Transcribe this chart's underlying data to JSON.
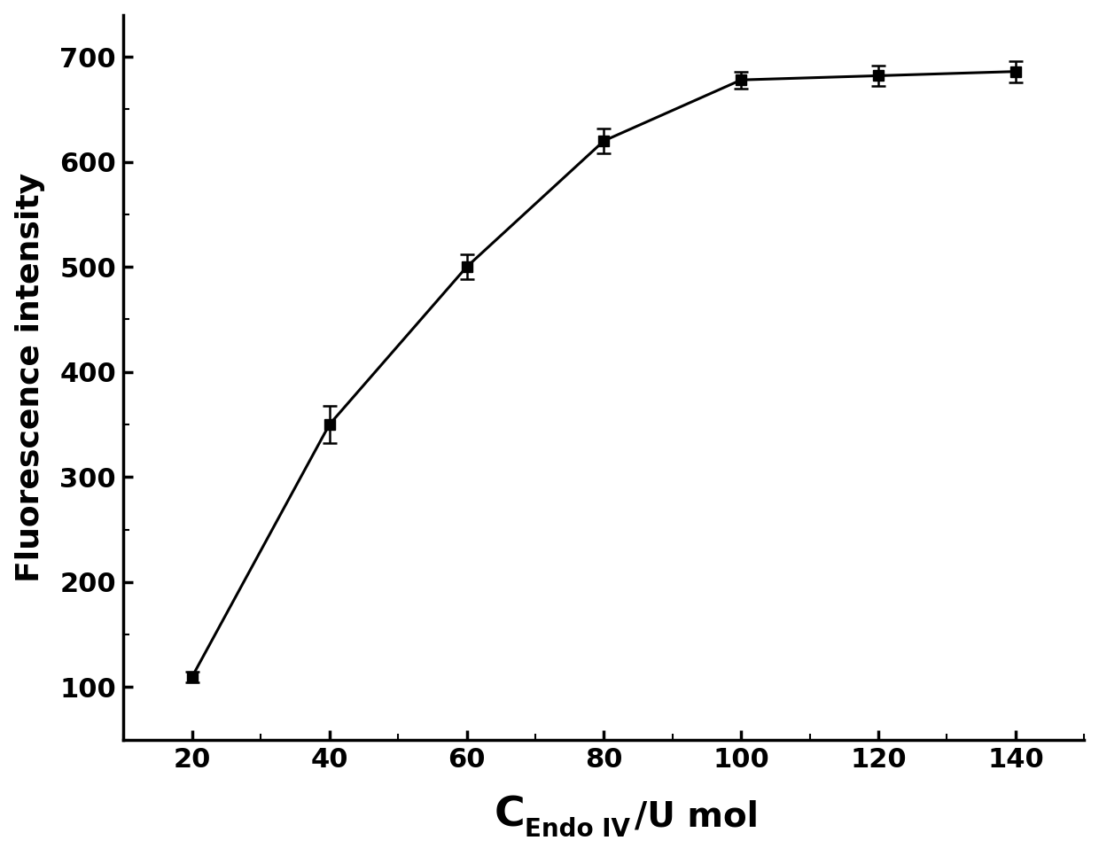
{
  "x": [
    20,
    40,
    60,
    80,
    100,
    120,
    140
  ],
  "y": [
    110,
    350,
    500,
    620,
    678,
    682,
    686
  ],
  "yerr": [
    5,
    18,
    12,
    12,
    8,
    10,
    10
  ],
  "ylabel": "Fluorescence intensity",
  "xlim": [
    10,
    150
  ],
  "ylim": [
    50,
    740
  ],
  "yticks": [
    100,
    200,
    300,
    400,
    500,
    600,
    700
  ],
  "xticks": [
    20,
    40,
    60,
    80,
    100,
    120,
    140
  ],
  "line_color": "#000000",
  "marker": "s",
  "marker_color": "#000000",
  "marker_size": 9,
  "linewidth": 2.2,
  "background_color": "#ffffff",
  "ylabel_fontsize": 26,
  "xlabel_C_fontsize": 34,
  "xlabel_sub_fontsize": 20,
  "xlabel_suffix_fontsize": 28,
  "tick_fontsize": 22
}
